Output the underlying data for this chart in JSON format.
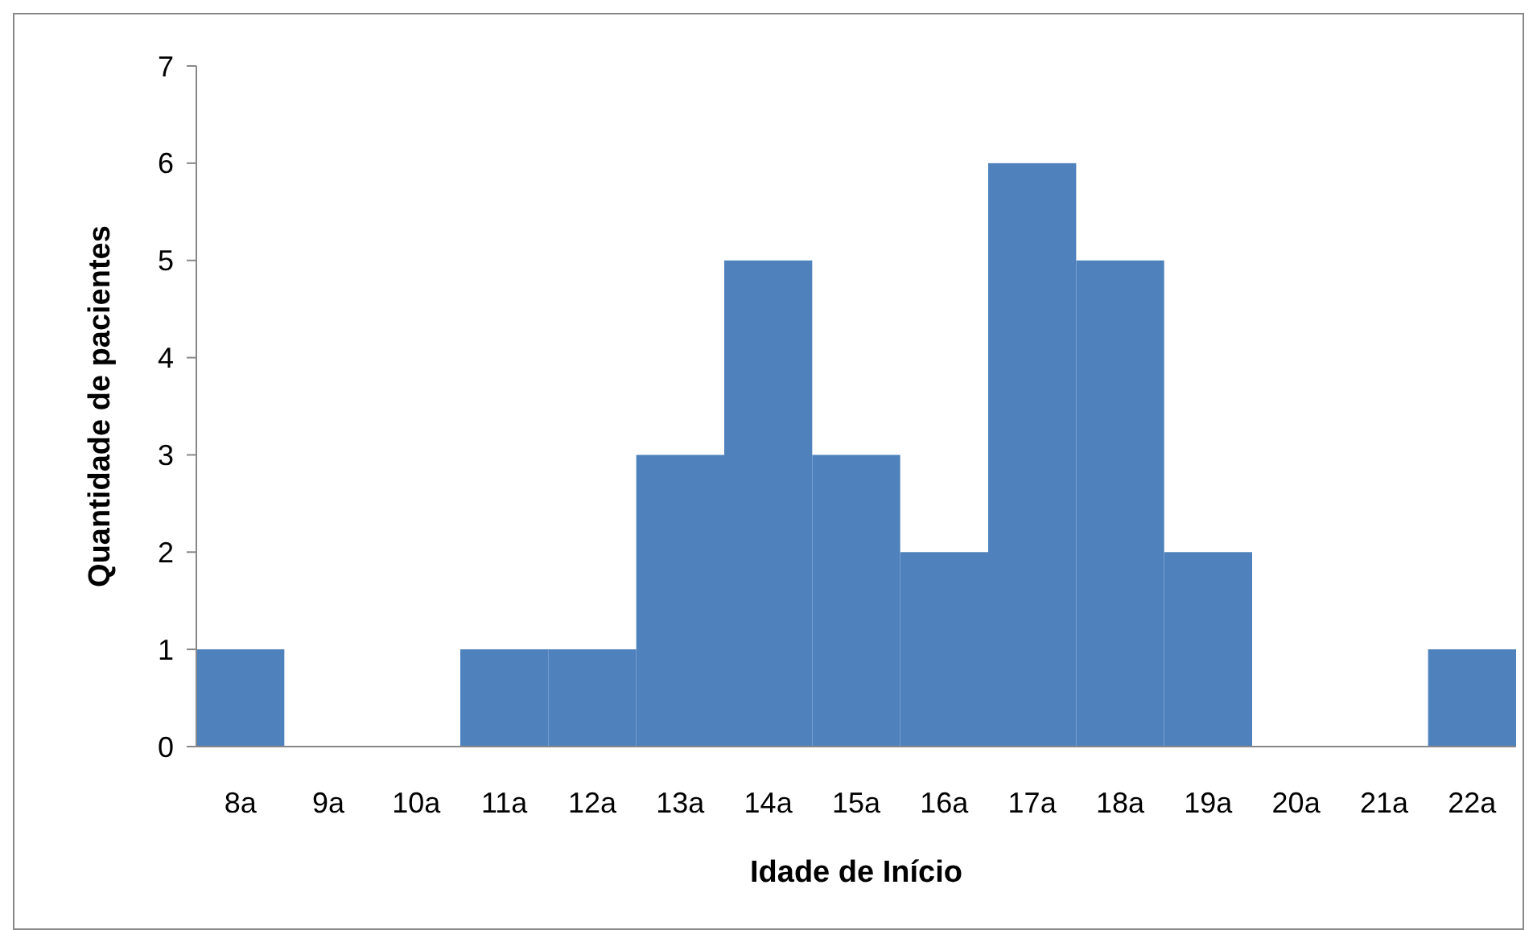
{
  "chart_data": {
    "type": "bar",
    "xlabel": "Idade de Início",
    "ylabel": "Quantidade de pacientes",
    "categories": [
      "8a",
      "9a",
      "10a",
      "11a",
      "12a",
      "13a",
      "14a",
      "15a",
      "16a",
      "17a",
      "18a",
      "19a",
      "20a",
      "21a",
      "22a"
    ],
    "values": [
      1,
      0,
      0,
      1,
      1,
      3,
      5,
      3,
      2,
      6,
      5,
      2,
      0,
      0,
      1
    ],
    "color": "#4f81bd",
    "ylim": [
      0,
      7
    ],
    "yticks": [
      0,
      1,
      2,
      3,
      4,
      5,
      6,
      7
    ],
    "grid": false
  }
}
